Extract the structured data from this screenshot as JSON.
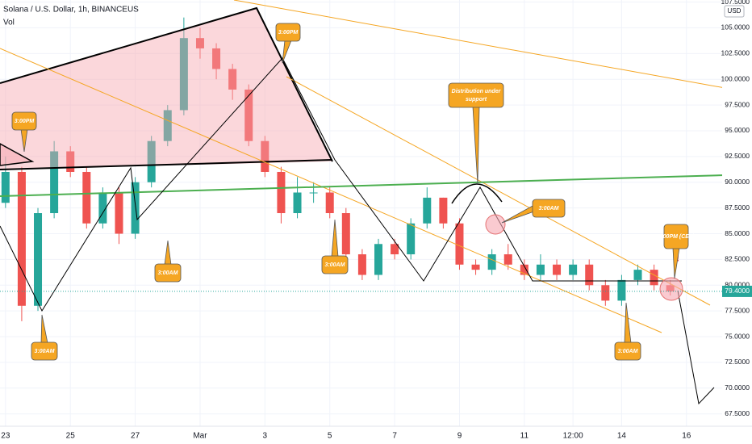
{
  "chart_data": {
    "type": "candlestick",
    "title": "Solana / U.S. Dollar, 1h, BINANCEUS",
    "volume_label": "Vol",
    "currency": "USD",
    "up_color": "#26a69a",
    "down_color": "#ef5350",
    "x": [
      0,
      0.5,
      1,
      1.5,
      2,
      2.5,
      3,
      3.5,
      4,
      4.5,
      5,
      5.5,
      6,
      6.5,
      7,
      7.5,
      8,
      8.5,
      9,
      9.5,
      10,
      10.5,
      11,
      11.5,
      12,
      12.5,
      13,
      13.5,
      14,
      14.5,
      15,
      15.5,
      16,
      16.5,
      17,
      17.5,
      18,
      18.5,
      19,
      19.5,
      20,
      20.5
    ],
    "open": [
      88,
      91,
      78,
      87,
      93,
      91,
      86,
      89,
      85,
      90,
      94,
      97,
      104,
      103,
      101,
      99,
      94,
      91,
      87,
      89,
      89,
      87,
      83,
      81,
      84,
      83,
      86,
      88.5,
      86,
      82,
      81.5,
      83,
      82,
      81,
      82,
      81,
      82,
      80,
      78.5,
      80.5,
      81.5,
      80
    ],
    "high": [
      92.5,
      91.5,
      87.5,
      94,
      93.5,
      91.5,
      89.5,
      89.5,
      90.5,
      94.5,
      97.5,
      106,
      105,
      103.5,
      101.5,
      99.5,
      94.5,
      91.5,
      90.5,
      90,
      89.5,
      87.5,
      83.5,
      84.5,
      84.5,
      86.5,
      89.5,
      88.5,
      86.5,
      82.5,
      83.5,
      84,
      82.5,
      83,
      82.5,
      82.5,
      82.5,
      80.5,
      81,
      82,
      82,
      80.5
    ],
    "low": [
      87.5,
      76.5,
      77.5,
      86.5,
      90.5,
      85.5,
      85.5,
      84,
      84.5,
      89.5,
      93.5,
      96.5,
      102,
      100,
      98,
      93.5,
      90.5,
      86,
      86.5,
      88,
      86.5,
      82.5,
      80.5,
      80.5,
      82.5,
      82.5,
      85.5,
      85.5,
      81.5,
      81,
      81,
      81.5,
      80.5,
      80.5,
      80.5,
      80.5,
      79.5,
      78,
      78,
      80,
      79.5,
      79
    ],
    "close": [
      91,
      78,
      87,
      93,
      91,
      86,
      89,
      85,
      90,
      94,
      97,
      104,
      103,
      101,
      99,
      94,
      91,
      87,
      89,
      89,
      87,
      83,
      81,
      84,
      83,
      86,
      88.5,
      86,
      82,
      81.5,
      83,
      82,
      81,
      82,
      81,
      82,
      80,
      78.5,
      80.5,
      81.5,
      80,
      79.4
    ],
    "xlim": [
      -0.17,
      22.1
    ],
    "xticks": [
      {
        "value": 0,
        "label": "23"
      },
      {
        "value": 2,
        "label": "25"
      },
      {
        "value": 4,
        "label": "27"
      },
      {
        "value": 6,
        "label": "Mar"
      },
      {
        "value": 8,
        "label": "3"
      },
      {
        "value": 10,
        "label": "5"
      },
      {
        "value": 12,
        "label": "7"
      },
      {
        "value": 14,
        "label": "9"
      },
      {
        "value": 16,
        "label": "11"
      },
      {
        "value": 17.5,
        "label": "12:00"
      },
      {
        "value": 19,
        "label": "14"
      },
      {
        "value": 21,
        "label": "16"
      }
    ],
    "ylim": [
      66.3,
      107.7
    ],
    "yticks": [
      {
        "value": 67.5,
        "label": "67.5000"
      },
      {
        "value": 70,
        "label": "70.0000"
      },
      {
        "value": 72.5,
        "label": "72.5000"
      },
      {
        "value": 75,
        "label": "75.0000"
      },
      {
        "value": 77.5,
        "label": "77.5000"
      },
      {
        "value": 80,
        "label": "80.0000"
      },
      {
        "value": 82.5,
        "label": "82.5000"
      },
      {
        "value": 85,
        "label": "85.0000"
      },
      {
        "value": 87.5,
        "label": "87.5000"
      },
      {
        "value": 90,
        "label": "90.0000"
      },
      {
        "value": 92.5,
        "label": "92.5000"
      },
      {
        "value": 95,
        "label": "95.0000"
      },
      {
        "value": 97.5,
        "label": "97.5000"
      },
      {
        "value": 100,
        "label": "100.0000"
      },
      {
        "value": 102.5,
        "label": "102.5000"
      },
      {
        "value": 105,
        "label": "105.0000"
      },
      {
        "value": 107.5,
        "label": "107.5000"
      }
    ],
    "last_price": {
      "value": 79.4,
      "label": "79.4000"
    },
    "annotations": [
      "3:00PM",
      "3:00AM",
      "3:00AM",
      "3:00PM",
      "3:00AM",
      "Distribution under support",
      "3:00AM",
      "3:00AM",
      "3:00PM (CET)"
    ],
    "alert": "!"
  }
}
